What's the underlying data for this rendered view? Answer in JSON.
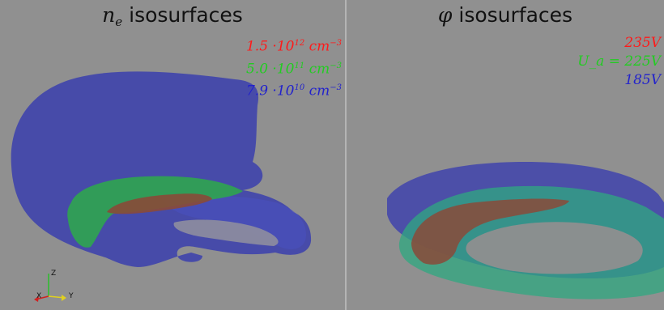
{
  "left_panel": {
    "title_symbol": "n",
    "title_subscript": "e",
    "title_text": "isosurfaces",
    "legend": [
      {
        "mantissa": "1.5 ·10",
        "exponent": "12",
        "unit": "cm",
        "unit_exp": "−3",
        "color": "#ff1a1a"
      },
      {
        "mantissa": "5.0 ·10",
        "exponent": "11",
        "unit": "cm",
        "unit_exp": "−3",
        "color": "#22cc22"
      },
      {
        "mantissa": "7.9 ·10",
        "exponent": "10",
        "unit": "cm",
        "unit_exp": "−3",
        "color": "#2222cc"
      }
    ]
  },
  "right_panel": {
    "title_symbol": "φ",
    "title_text": "isosurfaces",
    "legend": [
      {
        "label": "235V",
        "color": "#ff1a1a"
      },
      {
        "label": "U_a = 225V",
        "color": "#22cc22"
      },
      {
        "label": "185V",
        "color": "#2222cc"
      }
    ]
  },
  "axes": {
    "x": "X",
    "y": "Y",
    "z": "Z"
  },
  "colors": {
    "background": "#909090",
    "blue_surface": "#3a3fa8",
    "green_surface": "#2fa84a",
    "red_surface": "#8a4a3a"
  }
}
